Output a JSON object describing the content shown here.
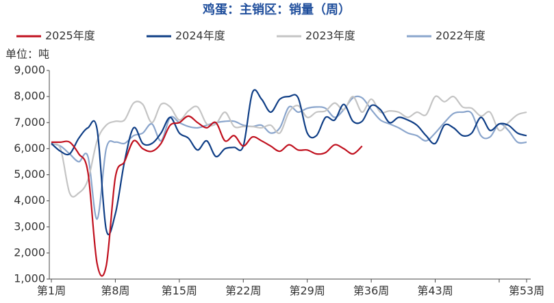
{
  "chart_data": {
    "type": "line",
    "title": "鸡蛋：主销区：销量（周）",
    "unit_label": "单位：吨",
    "categories": [
      "第1周",
      null,
      null,
      null,
      null,
      null,
      null,
      "第8周",
      null,
      null,
      null,
      null,
      null,
      null,
      "第15周",
      null,
      null,
      null,
      null,
      null,
      null,
      "第22周",
      null,
      null,
      null,
      null,
      null,
      null,
      "第29周",
      null,
      null,
      null,
      null,
      null,
      null,
      "第36周",
      null,
      null,
      null,
      null,
      null,
      null,
      "第43周",
      null,
      null,
      null,
      null,
      null,
      null,
      null,
      null,
      null,
      "第53周"
    ],
    "series": [
      {
        "name": "2025年度",
        "color": "#c0101e",
        "values": [
          6250,
          6250,
          6250,
          5800,
          5100,
          1600,
          1500,
          4900,
          5500,
          6300,
          6000,
          5900,
          6200,
          6900,
          7000,
          7250,
          7000,
          6800,
          7000,
          6300,
          6500,
          6100,
          6450,
          6300,
          6100,
          5900,
          6150,
          5950,
          5950,
          5800,
          5850,
          6150,
          6000,
          5800,
          6100,
          null,
          null,
          null,
          null,
          null,
          null,
          null,
          null,
          null,
          null,
          null,
          null,
          null,
          null,
          null,
          null,
          null,
          null
        ]
      },
      {
        "name": "2024年度",
        "color": "#0e3d85",
        "values": [
          6200,
          5900,
          5800,
          6400,
          6800,
          6750,
          2900,
          3500,
          5500,
          6800,
          6200,
          6200,
          6600,
          7200,
          6600,
          6400,
          5950,
          6300,
          5700,
          6000,
          6050,
          6100,
          8150,
          7900,
          7400,
          7900,
          8000,
          7950,
          6600,
          6500,
          7200,
          7100,
          7700,
          7050,
          7050,
          7650,
          7500,
          7000,
          7200,
          7100,
          6900,
          6500,
          6200,
          6900,
          6800,
          6500,
          6600,
          7200,
          6700,
          6950,
          6900,
          6600,
          6500
        ]
      },
      {
        "name": "2023年度",
        "color": "#c4c4c4",
        "values": [
          6150,
          6000,
          4300,
          4300,
          4800,
          6300,
          6900,
          7050,
          7100,
          7750,
          7700,
          7000,
          7700,
          7600,
          7100,
          7450,
          7600,
          6950,
          6950,
          7400,
          6850,
          6850,
          6850,
          6800,
          6900,
          6600,
          7400,
          7650,
          7200,
          7400,
          7450,
          7750,
          7500,
          8000,
          7400,
          7900,
          7400,
          7450,
          7400,
          7200,
          7400,
          7300,
          8000,
          7800,
          8000,
          7600,
          7550,
          7250,
          7400,
          6700,
          7000,
          7300,
          7400
        ]
      },
      {
        "name": "2022年度",
        "color": "#8aa5cc",
        "values": [
          6200,
          6100,
          5800,
          5500,
          5700,
          3300,
          6000,
          6250,
          6200,
          6500,
          6600,
          6950,
          6300,
          7200,
          7000,
          6850,
          6800,
          6900,
          7000,
          7050,
          7050,
          6900,
          6850,
          6900,
          6600,
          6800,
          7600,
          7400,
          7550,
          7600,
          7550,
          7200,
          7500,
          7950,
          7950,
          7500,
          7100,
          6950,
          6800,
          6600,
          6500,
          6300,
          6600,
          7000,
          7350,
          7400,
          7350,
          6500,
          6450,
          6950,
          6700,
          6250,
          6250
        ]
      }
    ],
    "ylim": [
      1000,
      9000
    ],
    "yticks": [
      {
        "value": 1000,
        "label": "1,000"
      },
      {
        "value": 2000,
        "label": "2,000"
      },
      {
        "value": 3000,
        "label": "3,000"
      },
      {
        "value": 4000,
        "label": "4,000"
      },
      {
        "value": 5000,
        "label": "5,000"
      },
      {
        "value": 6000,
        "label": "6,000"
      },
      {
        "value": 7000,
        "label": "7,000"
      },
      {
        "value": 8000,
        "label": "8,000"
      },
      {
        "value": 9000,
        "label": "9,000"
      }
    ],
    "grid": false,
    "legend": "top"
  }
}
